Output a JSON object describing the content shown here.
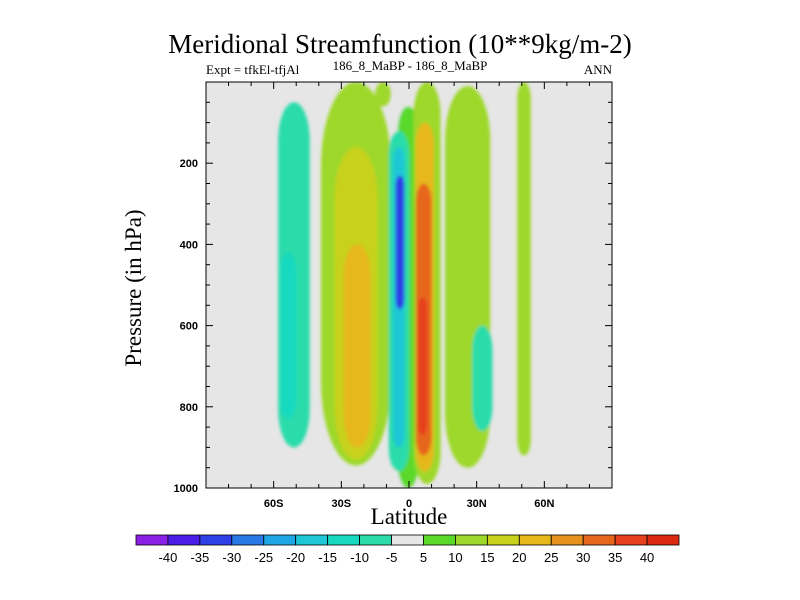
{
  "chart_data": {
    "type": "heatmap",
    "title": "Meridional Streamfunction (10**9kg/m-2)",
    "subtitle_left": "Expt = tfkEl-tfjAl",
    "subtitle_center": "186_8_MaBP - 186_8_MaBP",
    "subtitle_right": "ANN",
    "xlabel": "Latitude",
    "ylabel": "Pressure (in hPa)",
    "xlim": [
      -90,
      90
    ],
    "ylim": [
      1000,
      0
    ],
    "x_ticks": [
      {
        "value": -60,
        "label": "60S"
      },
      {
        "value": -30,
        "label": "30S"
      },
      {
        "value": 0,
        "label": "0"
      },
      {
        "value": 30,
        "label": "30N"
      },
      {
        "value": 60,
        "label": "60N"
      }
    ],
    "y_ticks": [
      {
        "value": 200,
        "label": "200"
      },
      {
        "value": 400,
        "label": "400"
      },
      {
        "value": 600,
        "label": "600"
      },
      {
        "value": 800,
        "label": "800"
      },
      {
        "value": 1000,
        "label": "1000"
      }
    ],
    "background_color": "#e6e6e6",
    "colorbar": {
      "levels": [
        "-40",
        "-35",
        "-30",
        "-25",
        "-20",
        "-15",
        "-10",
        "-5",
        "5",
        "10",
        "15",
        "20",
        "25",
        "30",
        "35",
        "40"
      ],
      "colors": [
        "#8a1fe6",
        "#4b1ee6",
        "#2e40e6",
        "#2a78e6",
        "#1ea6e6",
        "#1fc7d6",
        "#18d9c0",
        "#2bdcaa",
        "#e6e6e6",
        "#5ad92a",
        "#9ed82a",
        "#c8d11c",
        "#e6b81c",
        "#e6921c",
        "#e6661c",
        "#e6401c",
        "#dc2a10"
      ]
    },
    "cells": [
      {
        "x": [
          -58,
          -44
        ],
        "p": [
          50,
          900
        ],
        "value": -10
      },
      {
        "x": [
          -57,
          -50
        ],
        "p": [
          420,
          830
        ],
        "value": -15
      },
      {
        "x": [
          -39,
          -8
        ],
        "p": [
          0,
          945
        ],
        "value": 10
      },
      {
        "x": [
          -33,
          -14
        ],
        "p": [
          160,
          930
        ],
        "value": 15
      },
      {
        "x": [
          -29,
          -17
        ],
        "p": [
          400,
          900
        ],
        "value": 20
      },
      {
        "x": [
          -15,
          -8
        ],
        "p": [
          0,
          60
        ],
        "value": 10
      },
      {
        "x": [
          -7,
          0
        ],
        "p": [
          0,
          1000
        ],
        "value": -5
      },
      {
        "x": [
          -5,
          4
        ],
        "p": [
          60,
          1000
        ],
        "value": 5
      },
      {
        "x": [
          -9,
          0
        ],
        "p": [
          120,
          960
        ],
        "value": -10
      },
      {
        "x": [
          -7,
          -2
        ],
        "p": [
          160,
          900
        ],
        "value": -20
      },
      {
        "x": [
          -6,
          -2
        ],
        "p": [
          230,
          560
        ],
        "value": -35
      },
      {
        "x": [
          2,
          14
        ],
        "p": [
          0,
          990
        ],
        "value": 10
      },
      {
        "x": [
          3,
          11
        ],
        "p": [
          100,
          960
        ],
        "value": 20
      },
      {
        "x": [
          3,
          10
        ],
        "p": [
          250,
          920
        ],
        "value": 30
      },
      {
        "x": [
          4,
          8
        ],
        "p": [
          530,
          870
        ],
        "value": 35
      },
      {
        "x": [
          16,
          36
        ],
        "p": [
          10,
          950
        ],
        "value": 10
      },
      {
        "x": [
          28,
          37
        ],
        "p": [
          600,
          860
        ],
        "value": -10
      },
      {
        "x": [
          48,
          54
        ],
        "p": [
          0,
          920
        ],
        "value": 10
      }
    ]
  }
}
